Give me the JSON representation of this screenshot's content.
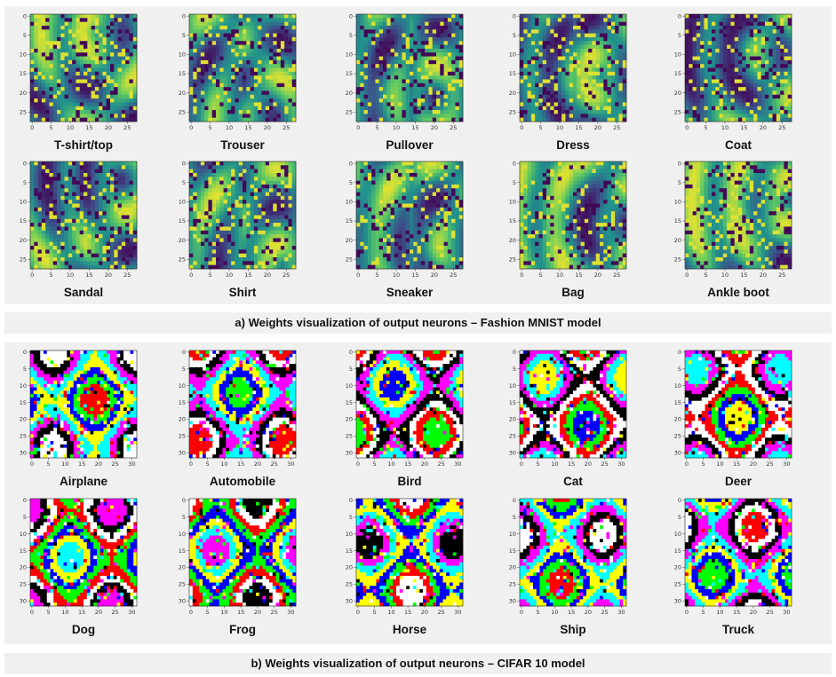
{
  "figure": {
    "caption_a": "a)   Weights visualization of output neurons – Fashion MNIST model",
    "caption_b": "b)   Weights visualization of output neurons – CIFAR 10 model"
  },
  "fashion": {
    "x_ticks": [
      "0",
      "5",
      "10",
      "15",
      "20",
      "25"
    ],
    "y_ticks": [
      "0",
      "5",
      "10",
      "15",
      "20",
      "25"
    ],
    "labels": [
      "T-shirt/top",
      "Trouser",
      "Pullover",
      "Dress",
      "Coat",
      "Sandal",
      "Shirt",
      "Sneaker",
      "Bag",
      "Ankle boot"
    ]
  },
  "cifar": {
    "x_ticks": [
      "0",
      "5",
      "10",
      "15",
      "20",
      "25",
      "30"
    ],
    "y_ticks": [
      "0",
      "5",
      "10",
      "15",
      "20",
      "25",
      "30"
    ],
    "labels": [
      "Airplane",
      "Automobile",
      "Bird",
      "Cat",
      "Deer",
      "Dog",
      "Frog",
      "Horse",
      "Ship",
      "Truck"
    ]
  },
  "colors": {
    "viridis_low": "#440154",
    "viridis_mid": "#21918c",
    "viridis_high": "#fde725",
    "cifar_palette": [
      "#ff0000",
      "#00ff00",
      "#0000ff",
      "#ffff00",
      "#00ffff",
      "#ff00ff",
      "#000000",
      "#ffffff"
    ]
  }
}
